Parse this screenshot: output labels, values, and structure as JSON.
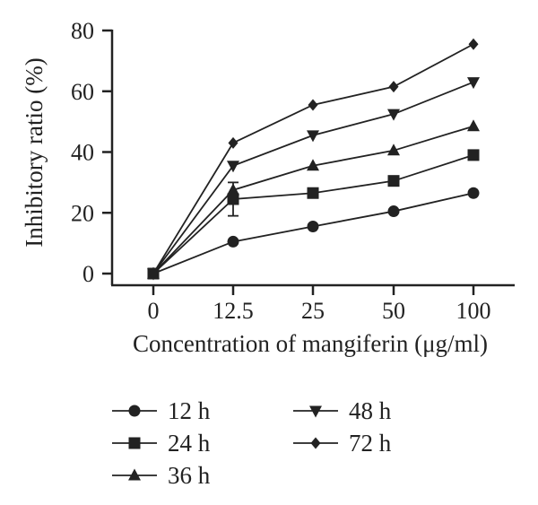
{
  "chart_data": {
    "type": "line",
    "categories": [
      "0",
      "12.5",
      "25",
      "50",
      "100"
    ],
    "xlabel": "Concentration of mangiferin (μg/ml)",
    "ylabel": "Inhibitory ratio (%)",
    "ylim": [
      0,
      80
    ],
    "yticks": [
      "0",
      "20",
      "40",
      "60",
      "80"
    ],
    "grid": false,
    "legend_position": "bottom",
    "series": [
      {
        "name": "12 h",
        "marker": "circle",
        "values": [
          0,
          10.5,
          15.5,
          20.5,
          26.5
        ]
      },
      {
        "name": "24 h",
        "marker": "square",
        "values": [
          0,
          24.5,
          26.5,
          30.5,
          39
        ],
        "error": [
          0,
          5.5,
          0,
          0,
          0
        ]
      },
      {
        "name": "36 h",
        "marker": "triangle-up",
        "values": [
          0,
          27.5,
          35.5,
          40.5,
          48.5
        ]
      },
      {
        "name": "48 h",
        "marker": "triangle-down",
        "values": [
          0,
          35.5,
          45.5,
          52.5,
          63
        ]
      },
      {
        "name": "72 h",
        "marker": "diamond",
        "values": [
          0,
          43,
          55.5,
          61.5,
          75.5
        ]
      }
    ],
    "colors": {
      "line": "#222222",
      "marker": "#222222"
    }
  }
}
